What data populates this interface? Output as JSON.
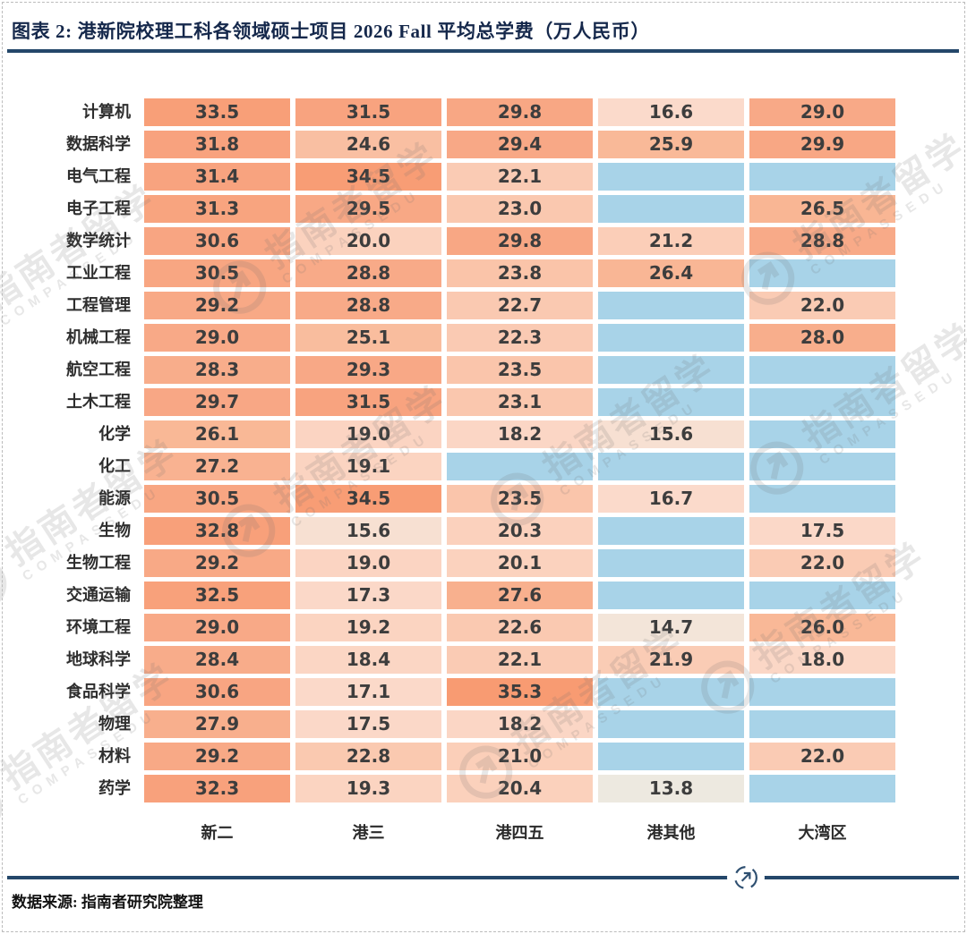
{
  "title": "图表 2: 港新院校理工科各领域硕士项目 2026 Fall 平均总学费（万人民币）",
  "source": "数据来源: 指南者研究院整理",
  "watermark": {
    "name": "指南者留学",
    "brand": "COMPASSEDU"
  },
  "chart_data": {
    "type": "heatmap",
    "title": "港新院校理工科各领域硕士项目 2026 Fall 平均总学费（万人民币）",
    "unit": "万人民币",
    "columns": [
      "新二",
      "港三",
      "港四五",
      "港其他",
      "大湾区"
    ],
    "rows": [
      "计算机",
      "数据科学",
      "电气工程",
      "电子工程",
      "数学统计",
      "工业工程",
      "工程管理",
      "机械工程",
      "航空工程",
      "土木工程",
      "化学",
      "化工",
      "能源",
      "生物",
      "生物工程",
      "交通运输",
      "环境工程",
      "地球科学",
      "食品科学",
      "物理",
      "材料",
      "药学"
    ],
    "values": [
      [
        33.5,
        31.5,
        29.8,
        16.6,
        29.0
      ],
      [
        31.8,
        24.6,
        29.4,
        25.9,
        29.9
      ],
      [
        31.4,
        34.5,
        22.1,
        null,
        null
      ],
      [
        31.3,
        29.5,
        23.0,
        null,
        26.5
      ],
      [
        30.6,
        20.0,
        29.8,
        21.2,
        28.8
      ],
      [
        30.5,
        28.8,
        23.8,
        26.4,
        null
      ],
      [
        29.2,
        28.8,
        22.7,
        null,
        22.0
      ],
      [
        29.0,
        25.1,
        22.3,
        null,
        28.0
      ],
      [
        28.3,
        29.3,
        23.5,
        null,
        null
      ],
      [
        29.7,
        31.5,
        23.1,
        null,
        null
      ],
      [
        26.1,
        19.0,
        18.2,
        15.6,
        null
      ],
      [
        27.2,
        19.1,
        null,
        null,
        null
      ],
      [
        30.5,
        34.5,
        23.5,
        16.7,
        null
      ],
      [
        32.8,
        15.6,
        20.3,
        null,
        17.5
      ],
      [
        29.2,
        19.0,
        20.1,
        null,
        22.0
      ],
      [
        32.5,
        17.3,
        27.6,
        null,
        null
      ],
      [
        29.0,
        19.2,
        22.6,
        14.7,
        26.0
      ],
      [
        28.4,
        18.4,
        22.1,
        21.9,
        18.0
      ],
      [
        30.6,
        17.1,
        35.3,
        null,
        null
      ],
      [
        27.9,
        17.5,
        18.2,
        null,
        null
      ],
      [
        29.2,
        22.8,
        21.0,
        null,
        22.0
      ],
      [
        32.3,
        19.3,
        20.4,
        13.8,
        null
      ]
    ],
    "value_range": [
      13.8,
      35.3
    ],
    "legend_position": "none",
    "grid": false,
    "colors": {
      "missing": "#A8D3E8",
      "accent_navy": "#24476A",
      "title_navy": "#15284B",
      "value_text": "#3D3D3D",
      "scale_anchors": [
        [
          13.8,
          "#EDE9E0"
        ],
        [
          15.0,
          "#F5E3D6"
        ],
        [
          16.6,
          "#FBDACB"
        ],
        [
          20.0,
          "#FBD2BE"
        ],
        [
          23.0,
          "#FAC8AF"
        ],
        [
          26.0,
          "#F9B897"
        ],
        [
          29.0,
          "#F8A987"
        ],
        [
          32.0,
          "#F8A27D"
        ],
        [
          35.3,
          "#F89B72"
        ]
      ]
    }
  }
}
